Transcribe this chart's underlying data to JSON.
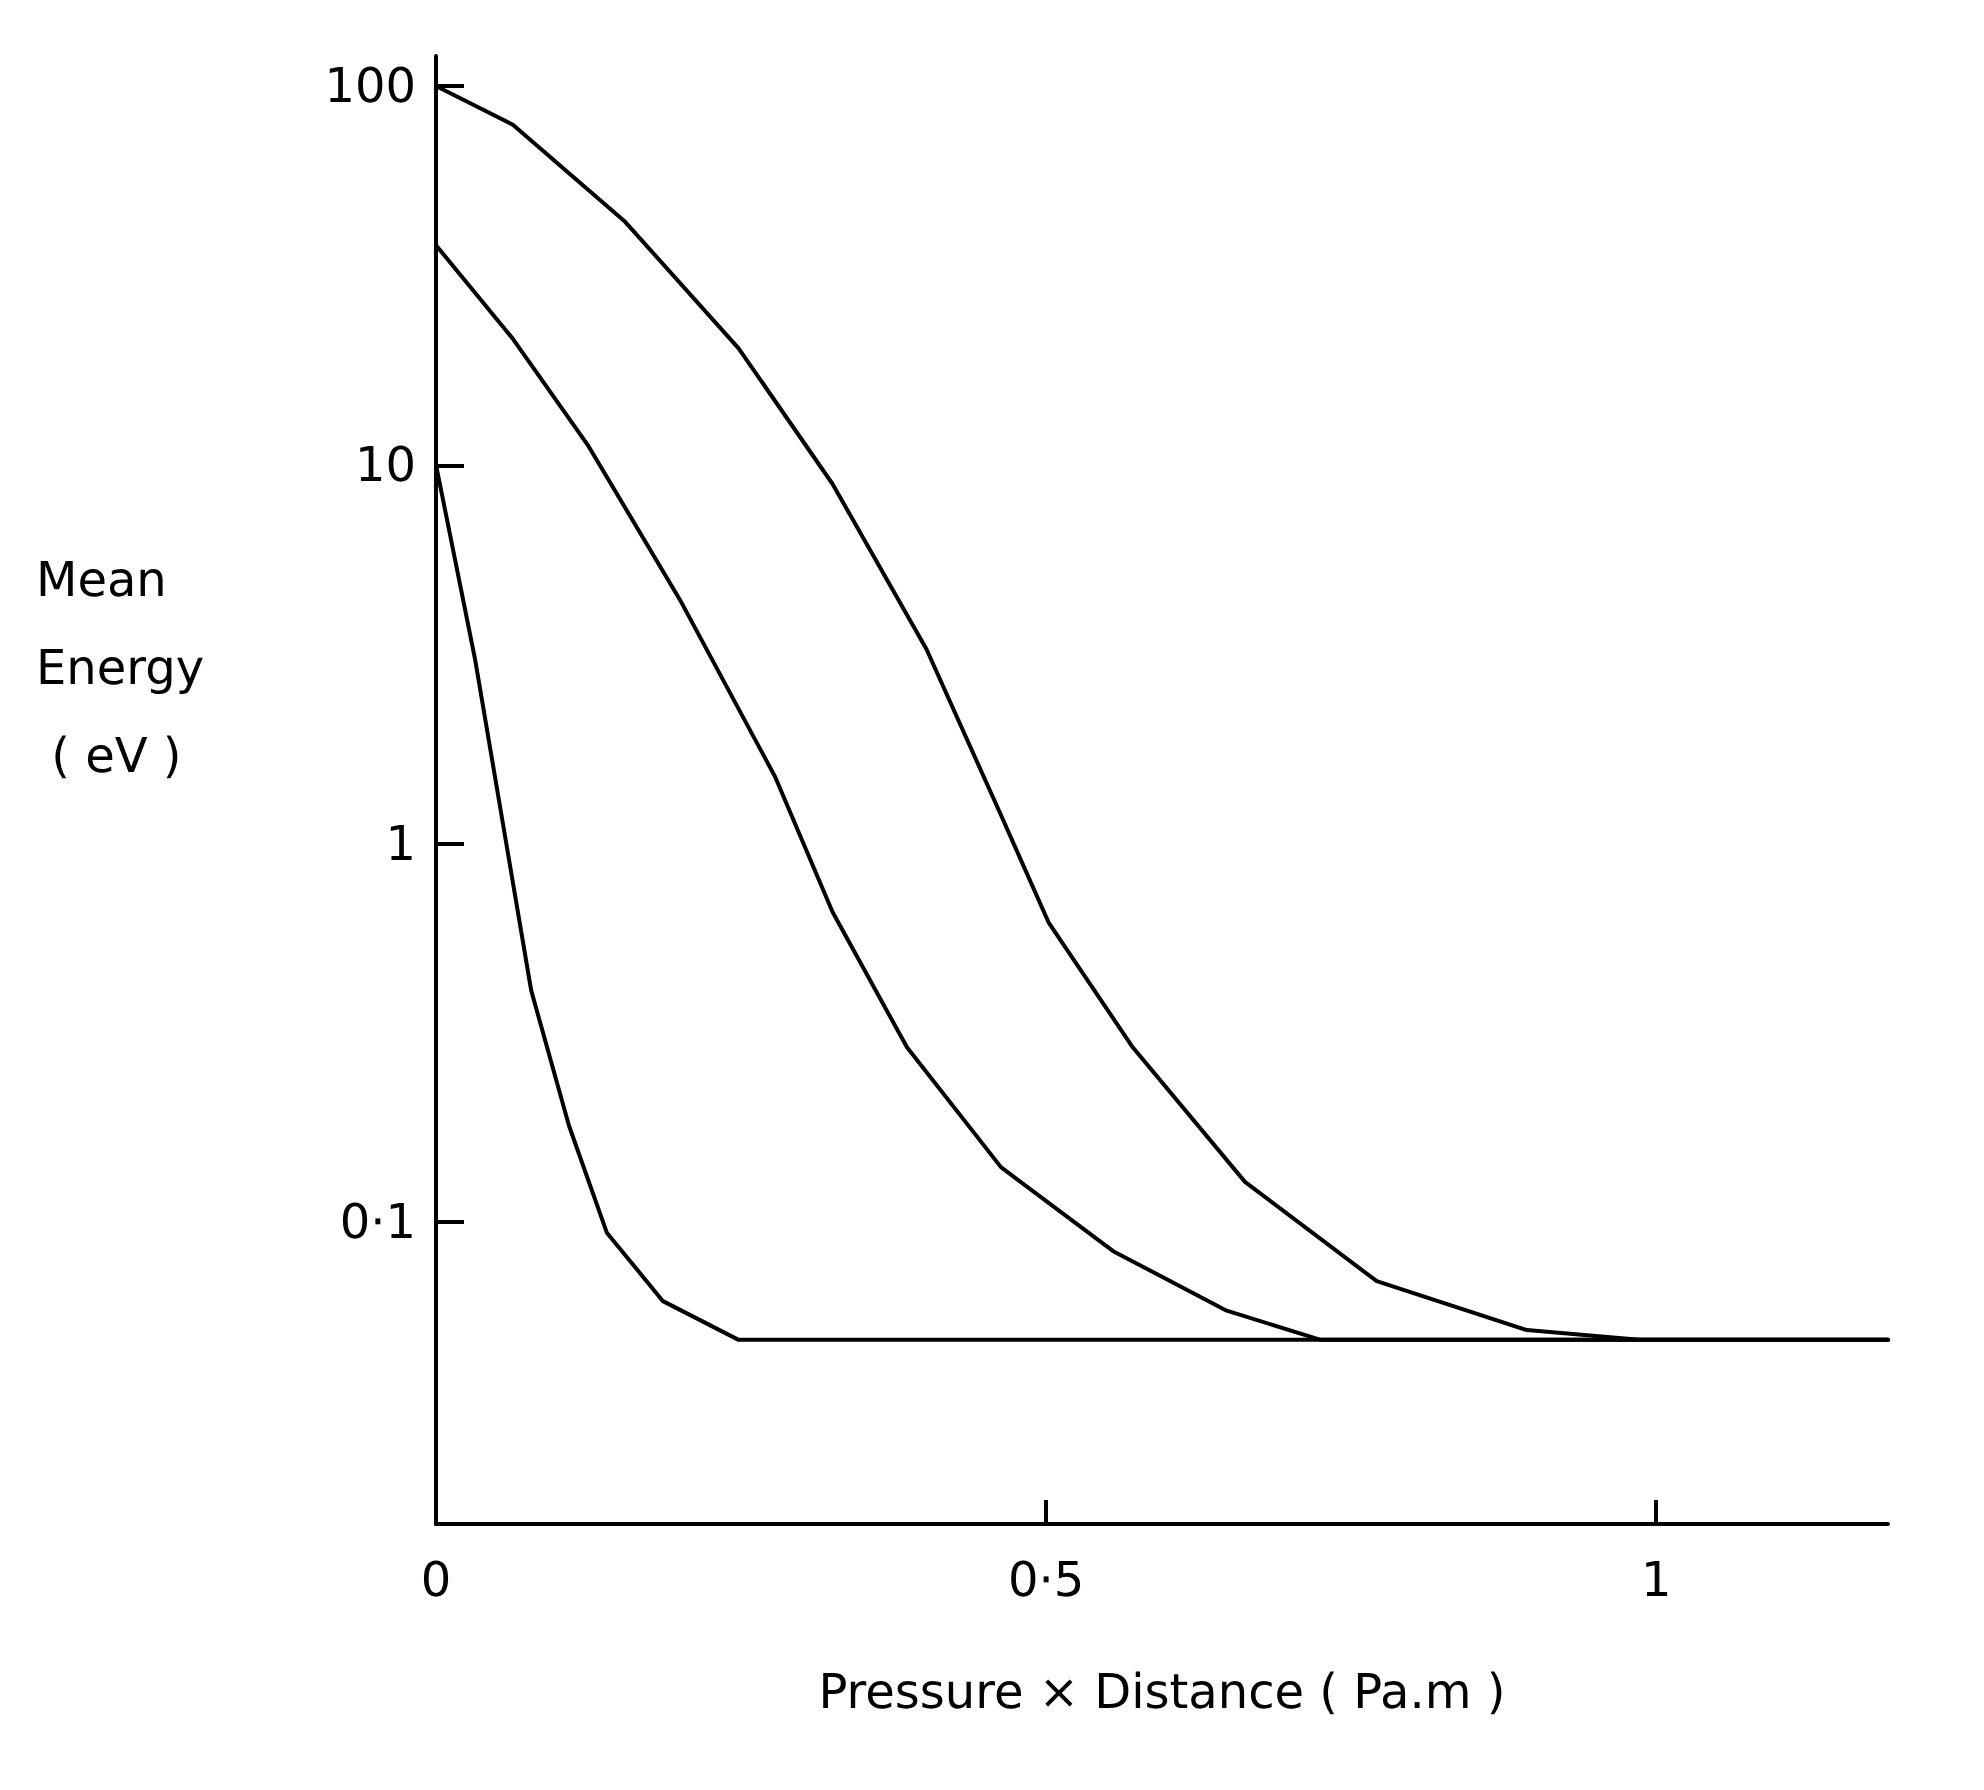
{
  "chart_data": {
    "type": "line",
    "xlabel": "Pressure × Distance ( Pa.m )",
    "ylabel": "Mean Energy ( eV )",
    "log": "y",
    "grid": false,
    "marker": "none",
    "line_style": "solid",
    "xlim": [
      0,
      1.19
    ],
    "xticks": [
      0,
      {
        "value": 0.5,
        "label": "0·5"
      },
      1
    ],
    "ylim": [
      0.016,
      120
    ],
    "yticks": [
      {
        "value": 0.1,
        "label": "0·1"
      },
      1,
      10,
      100
    ],
    "series": [
      {
        "color": "#000000",
        "x": [
          0,
          0.032,
          0.078,
          0.109,
          0.14,
          0.186,
          0.248,
          0.29,
          0.5,
          0.8,
          1.19
        ],
        "values": [
          10,
          3.07,
          0.41,
          0.18,
          0.094,
          0.062,
          0.049,
          0.049,
          0.049,
          0.049,
          0.049
        ]
      },
      {
        "color": "#000000",
        "x": [
          0,
          0.063,
          0.125,
          0.2,
          0.278,
          0.325,
          0.386,
          0.463,
          0.555,
          0.648,
          0.725,
          0.9,
          1.19
        ],
        "values": [
          38,
          21.5,
          11.2,
          4.4,
          1.5,
          0.66,
          0.29,
          0.14,
          0.084,
          0.0585,
          0.049,
          0.049,
          0.049
        ]
      },
      {
        "color": "#000000",
        "x": [
          0,
          0.063,
          0.155,
          0.248,
          0.325,
          0.402,
          0.463,
          0.502,
          0.571,
          0.663,
          0.771,
          0.894,
          0.986,
          1.19
        ],
        "values": [
          100,
          79,
          43.8,
          20.3,
          8.9,
          3.26,
          1.19,
          0.62,
          0.29,
          0.128,
          0.07,
          0.052,
          0.049,
          0.049
        ]
      }
    ]
  }
}
